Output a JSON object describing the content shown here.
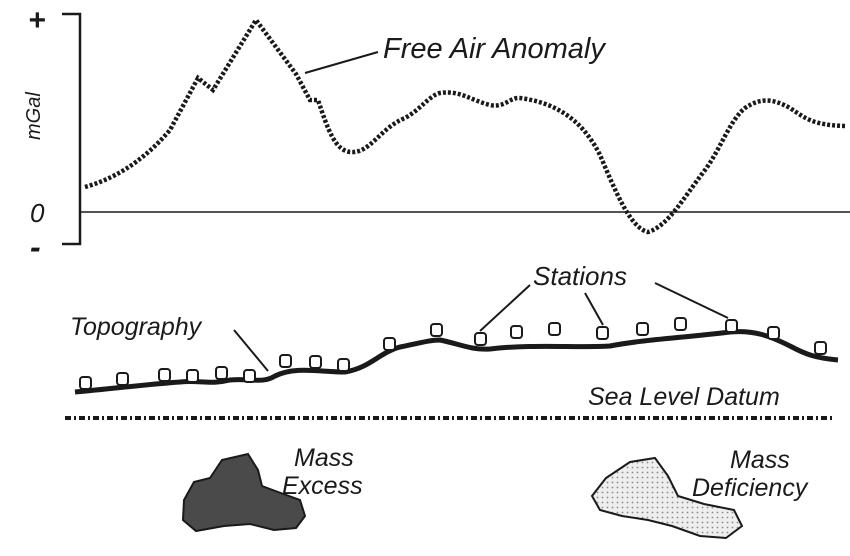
{
  "axis": {
    "plus_sign": "+",
    "minus_sign": "-",
    "zero_label": "0",
    "unit_label": "mGal"
  },
  "labels": {
    "free_air_anomaly": "Free Air Anomaly",
    "stations": "Stations",
    "topography": "Topography",
    "sea_level_datum": "Sea Level Datum",
    "mass_excess_line1": "Mass",
    "mass_excess_line2": "Excess",
    "mass_deficiency_line1": "Mass",
    "mass_deficiency_line2": "Deficiency"
  },
  "colors": {
    "ink": "#1a1a1a",
    "mass_excess_fill": "#4a4a4a",
    "mass_deficiency_fill": "#e6e6e6"
  }
}
